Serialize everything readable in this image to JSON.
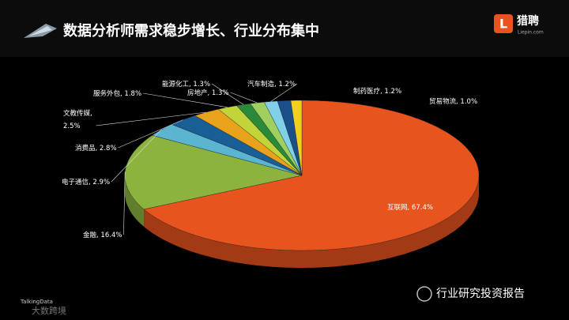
{
  "header": {
    "title": "数据分析师需求稳步增长、行业分布集中",
    "logo_text": "猎聘",
    "logo_sub": "Liepin.com"
  },
  "chart_data": {
    "type": "pie3d",
    "categories": [
      "互联网",
      "金融",
      "电子通信",
      "消费品",
      "文教传媒",
      "服务外包",
      "能源化工",
      "房地产",
      "汽车制造",
      "制药医疗",
      "贸易物流"
    ],
    "values": [
      67.4,
      16.4,
      2.9,
      2.8,
      2.5,
      1.8,
      1.3,
      1.3,
      1.2,
      1.2,
      1.0
    ],
    "value_labels": [
      "67.4%",
      "16.4%",
      "2.9%",
      "2.8%",
      "2.5%",
      "1.8%",
      "1.3%",
      "1.3%",
      "1.2%",
      "1.2%",
      "1.0%"
    ],
    "label_separator": ", ",
    "colors": [
      "#e8541e",
      "#8cb33e",
      "#5bb4d0",
      "#1a5e96",
      "#e8a21c",
      "#c3d33a",
      "#2a8a3a",
      "#9fcf5f",
      "#7fd0e8",
      "#1b4f8a",
      "#f0d020"
    ]
  },
  "footer": {
    "watermark": "行业研究投资报告",
    "source": "TalkingData",
    "brand": "大数跨境"
  }
}
